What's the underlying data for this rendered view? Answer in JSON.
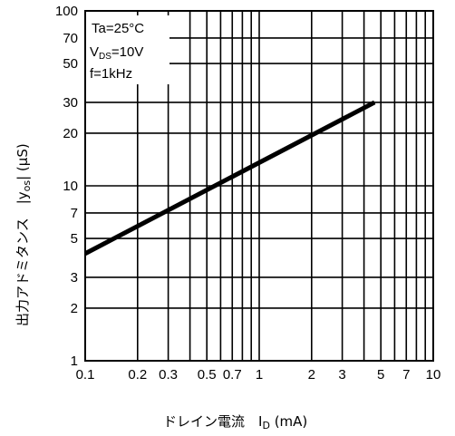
{
  "chart_data": {
    "type": "line",
    "x_scale": "log",
    "y_scale": "log",
    "xlim": [
      0.1,
      10
    ],
    "ylim": [
      1,
      100
    ],
    "grid": true,
    "x_ticks": [
      {
        "value": 0.1,
        "label": "0.1"
      },
      {
        "value": 0.2,
        "label": "0.2"
      },
      {
        "value": 0.3,
        "label": "0.3"
      },
      {
        "value": 0.5,
        "label": "0.5"
      },
      {
        "value": 0.7,
        "label": "0.7"
      },
      {
        "value": 1,
        "label": "1"
      },
      {
        "value": 2,
        "label": "2"
      },
      {
        "value": 3,
        "label": "3"
      },
      {
        "value": 5,
        "label": "5"
      },
      {
        "value": 7,
        "label": "7"
      },
      {
        "value": 10,
        "label": "10"
      }
    ],
    "y_ticks": [
      {
        "value": 1,
        "label": "1"
      },
      {
        "value": 2,
        "label": "2"
      },
      {
        "value": 3,
        "label": "3"
      },
      {
        "value": 5,
        "label": "5"
      },
      {
        "value": 7,
        "label": "7"
      },
      {
        "value": 10,
        "label": "10"
      },
      {
        "value": 20,
        "label": "20"
      },
      {
        "value": 30,
        "label": "30"
      },
      {
        "value": 50,
        "label": "50"
      },
      {
        "value": 70,
        "label": "70"
      },
      {
        "value": 100,
        "label": "100"
      }
    ],
    "x_grid": [
      0.1,
      0.2,
      0.3,
      0.4,
      0.5,
      0.6,
      0.7,
      0.8,
      0.9,
      1,
      2,
      3,
      4,
      5,
      6,
      7,
      8,
      9,
      10
    ],
    "y_grid": [
      1,
      2,
      3,
      5,
      7,
      10,
      20,
      30,
      50,
      70,
      100
    ],
    "xlabel": "ドレイン電流　I",
    "xlabel_sub": "D",
    "xlabel_unit": " (mA)",
    "ylabel": "出力アドミタンス　|y",
    "ylabel_sub": "os",
    "ylabel_unit": "| (μS)",
    "conditions": [
      "Ta=25°C",
      "VDS=10V",
      "f=1kHz"
    ],
    "series": [
      {
        "x": [
          0.1,
          4.6
        ],
        "y": [
          4.1,
          30
        ]
      }
    ]
  }
}
